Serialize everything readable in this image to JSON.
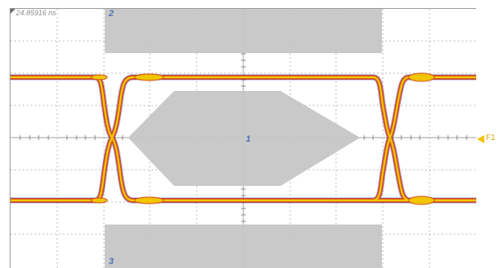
{
  "timestamp": "24.85916 ns",
  "mask_zones": {
    "top_label": "2",
    "center_label": "1",
    "bottom_label": "3"
  },
  "trace_marker": {
    "label": "F1",
    "color": "#f2c200"
  },
  "colors": {
    "grid": "#b9b9b9",
    "mask_fill": "#c6c6c6",
    "eye_core": "#f2c800",
    "eye_mid": "#e05a18",
    "eye_outer": "#b01818",
    "eye_halo": "#4c3f9a"
  },
  "icons": {
    "timestamp_marker": "corner-triangle-icon",
    "trace_marker": "triangle-left-icon"
  }
}
